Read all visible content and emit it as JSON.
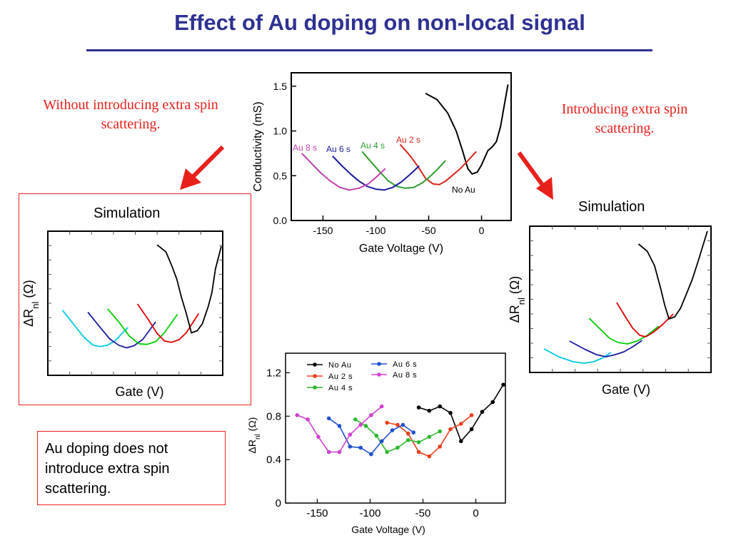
{
  "slide": {
    "title": "Effect of Au doping on non-local signal",
    "left_note": "Without introducing extra spin scattering.",
    "right_note": "Introducing extra spin scattering.",
    "left_sim_label": "Simulation",
    "right_sim_label": "Simulation",
    "conclusion": "Au doping does not introduce extra spin scattering.",
    "arrow_color": "#e8201c",
    "title_color": "#2e3192"
  },
  "chart_data": [
    {
      "id": "conductivity",
      "type": "line",
      "xlabel": "Gate Voltage (V)",
      "ylabel": "Conductivity (mS)",
      "xlim": [
        -180,
        28
      ],
      "ylim": [
        0,
        1.65
      ],
      "xticks": [
        -150,
        -100,
        -50,
        0
      ],
      "yticks": [
        0.0,
        0.5,
        1.0,
        1.5
      ],
      "ytick_labels": [
        "0.0",
        "0.5",
        "1.0",
        "1.5"
      ],
      "legend": "inline labels",
      "series": [
        {
          "name": "No Au",
          "color": "#000000",
          "x": [
            -53,
            -42,
            -32,
            -24,
            -18,
            -13,
            -9,
            -4,
            0,
            6,
            10,
            14,
            18,
            21,
            25
          ],
          "y": [
            1.42,
            1.35,
            1.2,
            1.0,
            0.78,
            0.58,
            0.52,
            0.54,
            0.62,
            0.78,
            0.82,
            0.88,
            1.05,
            1.25,
            1.52
          ]
        },
        {
          "name": "Au 2 s",
          "color": "#d9261c",
          "x": [
            -77,
            -68,
            -60,
            -53,
            -46,
            -40,
            -34,
            -28,
            -20,
            -12,
            -5
          ],
          "y": [
            0.85,
            0.73,
            0.6,
            0.47,
            0.41,
            0.4,
            0.44,
            0.5,
            0.58,
            0.68,
            0.77
          ]
        },
        {
          "name": "Au 4 s",
          "color": "#2e9e2e",
          "x": [
            -113,
            -105,
            -96,
            -88,
            -80,
            -72,
            -64,
            -56,
            -48,
            -41,
            -34
          ],
          "y": [
            0.77,
            0.66,
            0.54,
            0.44,
            0.38,
            0.36,
            0.37,
            0.42,
            0.5,
            0.58,
            0.67
          ]
        },
        {
          "name": "Au 6 s",
          "color": "#1a1aa0",
          "x": [
            -141,
            -132,
            -124,
            -116,
            -108,
            -100,
            -92,
            -84,
            -76,
            -68,
            -59
          ],
          "y": [
            0.72,
            0.61,
            0.52,
            0.44,
            0.38,
            0.35,
            0.34,
            0.37,
            0.43,
            0.51,
            0.61
          ]
        },
        {
          "name": "Au 8 s",
          "color": "#c040b0",
          "x": [
            -170,
            -161,
            -152,
            -143,
            -134,
            -125,
            -116,
            -107,
            -99,
            -91
          ],
          "y": [
            0.75,
            0.64,
            0.53,
            0.44,
            0.37,
            0.34,
            0.36,
            0.41,
            0.49,
            0.58
          ]
        }
      ]
    },
    {
      "id": "simulation_left",
      "type": "line",
      "xlabel": "Gate (V)",
      "ylabel": "ΔRnl (Ω)",
      "xlim": [
        0,
        240
      ],
      "ylim": [
        0,
        210
      ],
      "series": [
        {
          "color": "#00c8e0",
          "x": [
            20,
            35,
            50,
            62,
            72,
            82,
            92,
            110
          ],
          "y": [
            95,
            75,
            55,
            44,
            42,
            44,
            50,
            70
          ]
        },
        {
          "color": "#1a1aa0",
          "x": [
            55,
            70,
            85,
            97,
            108,
            118,
            130,
            148
          ],
          "y": [
            92,
            72,
            53,
            44,
            40,
            43,
            52,
            78
          ]
        },
        {
          "color": "#00cc00",
          "x": [
            82,
            98,
            112,
            125,
            136,
            148,
            160,
            178
          ],
          "y": [
            97,
            77,
            57,
            46,
            45,
            49,
            62,
            89
          ]
        },
        {
          "color": "#e00000",
          "x": [
            123,
            138,
            150,
            160,
            170,
            180,
            190,
            207
          ],
          "y": [
            104,
            81,
            61,
            50,
            48,
            52,
            62,
            90
          ]
        },
        {
          "color": "#000000",
          "x": [
            150,
            162,
            170,
            177,
            183,
            190,
            197,
            205,
            212,
            220,
            225,
            230,
            238
          ],
          "y": [
            190,
            180,
            160,
            140,
            115,
            90,
            62,
            65,
            75,
            100,
            120,
            155,
            188
          ]
        }
      ]
    },
    {
      "id": "simulation_right",
      "type": "line",
      "xlabel": "Gate (V)",
      "ylabel": "ΔRnl (Ω)",
      "xlim": [
        0,
        250
      ],
      "ylim": [
        0,
        205
      ],
      "series": [
        {
          "color": "#00c8e0",
          "x": [
            20,
            40,
            60,
            75,
            88,
            100,
            112
          ],
          "y": [
            33,
            22,
            15,
            13,
            15,
            20,
            28
          ]
        },
        {
          "color": "#1a1aa0",
          "x": [
            55,
            75,
            92,
            105,
            118,
            130,
            142,
            155
          ],
          "y": [
            44,
            33,
            25,
            22,
            25,
            29,
            36,
            45
          ]
        },
        {
          "color": "#00cc00",
          "x": [
            82,
            98,
            110,
            122,
            135,
            148,
            162,
            178
          ],
          "y": [
            76,
            60,
            48,
            42,
            40,
            44,
            52,
            65
          ]
        },
        {
          "color": "#e00000",
          "x": [
            120,
            132,
            142,
            152,
            160,
            170,
            182,
            198
          ],
          "y": [
            98,
            78,
            62,
            52,
            50,
            56,
            66,
            82
          ]
        },
        {
          "color": "#000000",
          "x": [
            150,
            162,
            172,
            180,
            186,
            192,
            200,
            208,
            216,
            224,
            232,
            238,
            245
          ],
          "y": [
            180,
            170,
            150,
            120,
            95,
            75,
            78,
            90,
            110,
            130,
            155,
            175,
            198
          ]
        }
      ]
    },
    {
      "id": "nonlocal",
      "type": "line",
      "xlabel": "Gate Voltage (V)",
      "ylabel": "ΔRnl (Ω)",
      "xlim": [
        -180,
        28
      ],
      "ylim": [
        0,
        1.38
      ],
      "xticks": [
        -150,
        -100,
        -50,
        0
      ],
      "yticks": [
        0,
        0.4,
        0.8,
        1.2
      ],
      "ytick_labels": [
        "0",
        "0.4",
        "0.8",
        "1.2"
      ],
      "legend": "top-left",
      "series": [
        {
          "name": "No Au",
          "color": "#000000",
          "x": [
            -54,
            -44,
            -34,
            -24,
            -14,
            -4,
            6,
            16,
            26
          ],
          "y": [
            0.88,
            0.85,
            0.89,
            0.83,
            0.57,
            0.68,
            0.84,
            0.93,
            1.09
          ]
        },
        {
          "name": "Au 2 s",
          "color": "#e8401c",
          "x": [
            -84,
            -74,
            -64,
            -54,
            -44,
            -34,
            -24,
            -14,
            -4
          ],
          "y": [
            0.74,
            0.72,
            0.64,
            0.47,
            0.43,
            0.52,
            0.68,
            0.73,
            0.81
          ]
        },
        {
          "name": "Au 4 s",
          "color": "#2eb82e",
          "x": [
            -114,
            -104,
            -94,
            -84,
            -74,
            -64,
            -54,
            -44,
            -34
          ],
          "y": [
            0.77,
            0.71,
            0.62,
            0.47,
            0.51,
            0.58,
            0.56,
            0.61,
            0.66
          ]
        },
        {
          "name": "Au 6 s",
          "color": "#2050d0",
          "x": [
            -139,
            -129,
            -119,
            -109,
            -99,
            -89,
            -79,
            -69,
            -59
          ],
          "y": [
            0.78,
            0.71,
            0.52,
            0.51,
            0.45,
            0.57,
            0.67,
            0.72,
            0.65
          ]
        },
        {
          "name": "Au 8 s",
          "color": "#d040d0",
          "x": [
            -169,
            -159,
            -149,
            -139,
            -129,
            -119,
            -109,
            -99,
            -89
          ],
          "y": [
            0.81,
            0.77,
            0.61,
            0.47,
            0.47,
            0.63,
            0.72,
            0.81,
            0.89
          ]
        }
      ]
    }
  ]
}
